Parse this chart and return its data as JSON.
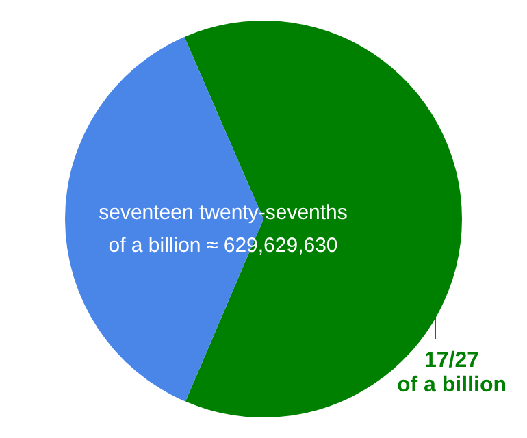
{
  "chart_data": {
    "type": "pie",
    "categories": [
      "17/27\nof a billion",
      null
    ],
    "values": [
      62.96,
      37.04
    ],
    "colors": [
      "#008000",
      "#4a86e8"
    ],
    "annotations": [
      "seventeen twenty-sevenths\nof a billion ≈ 629,629,630"
    ]
  }
}
